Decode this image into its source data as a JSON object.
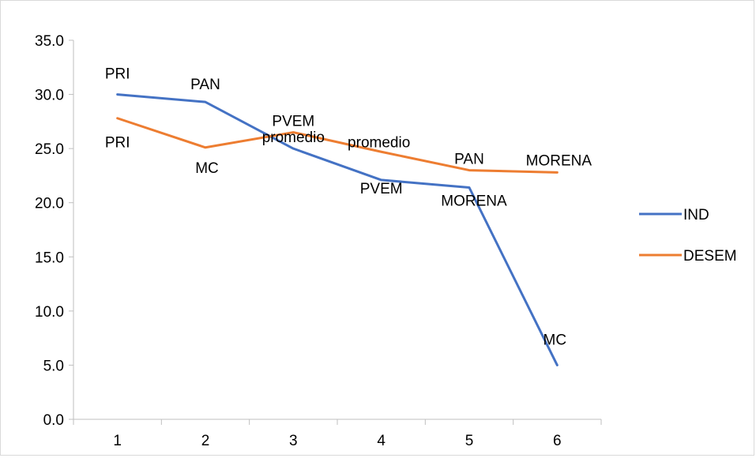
{
  "chart_data": {
    "type": "line",
    "x": [
      1,
      2,
      3,
      4,
      5,
      6
    ],
    "ylim": [
      0,
      35
    ],
    "yticks": [
      "0.0",
      "5.0",
      "10.0",
      "15.0",
      "20.0",
      "25.0",
      "30.0",
      "35.0"
    ],
    "xticks": [
      "1",
      "2",
      "3",
      "4",
      "5",
      "6"
    ],
    "grid": false,
    "legend_position": "right",
    "series": [
      {
        "name": "IND",
        "color": "#4472C4",
        "values": [
          30.0,
          29.3,
          25.0,
          22.1,
          21.4,
          5.0
        ],
        "labels": [
          "PRI",
          "PAN",
          "promedio",
          "PVEM",
          "MORENA",
          "MC"
        ]
      },
      {
        "name": "DESEM",
        "color": "#ED7D31",
        "values": [
          27.8,
          25.1,
          26.5,
          24.7,
          23.0,
          22.8
        ],
        "labels": [
          "PRI",
          "MC",
          "PVEM",
          "promedio",
          "PAN",
          "MORENA"
        ]
      }
    ]
  }
}
